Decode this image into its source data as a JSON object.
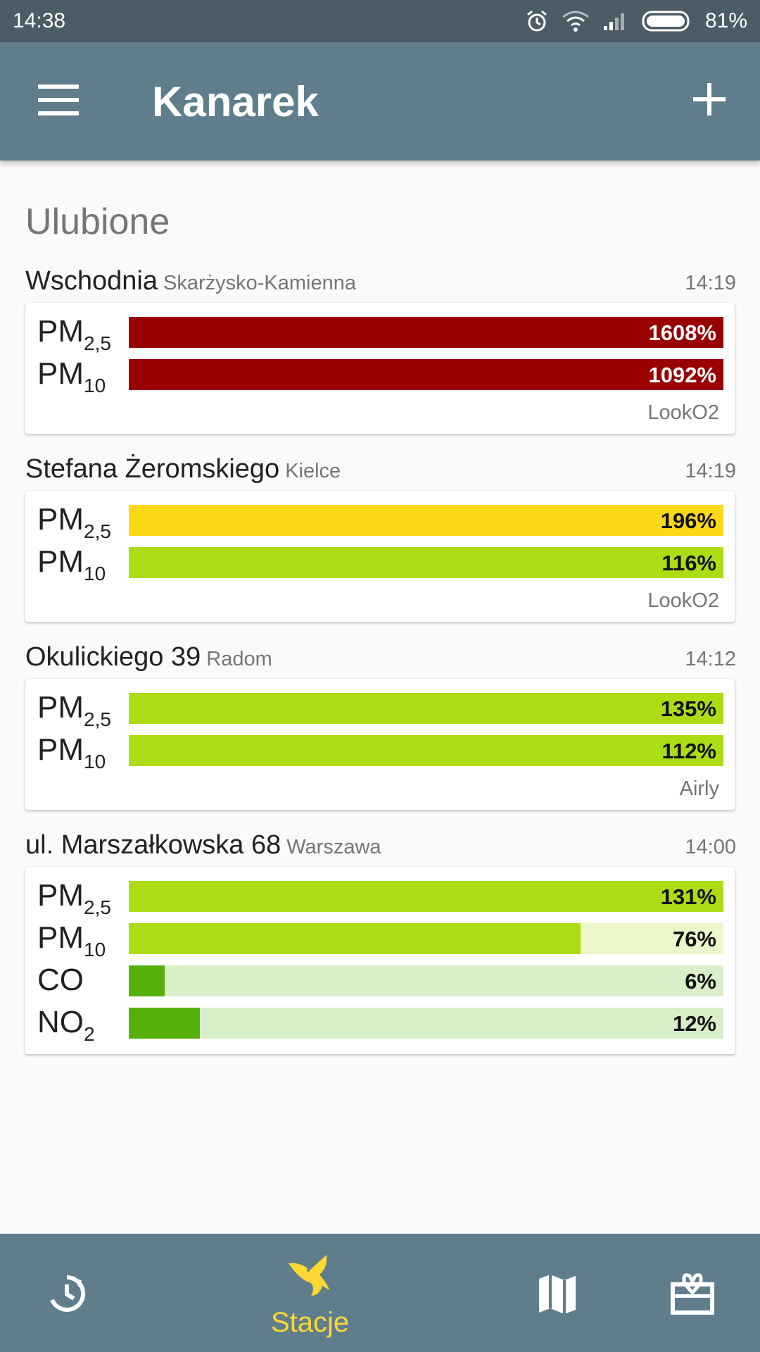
{
  "status_bar": {
    "time": "14:38",
    "battery": "81%"
  },
  "app_bar": {
    "title": "Kanarek",
    "menu_icon": "menu-icon",
    "add_icon": "plus-icon"
  },
  "section_title": "Ulubione",
  "stations": [
    {
      "name": "Wschodnia",
      "city": "Skarżysko-Kamienna",
      "time": "14:19",
      "source": "LookO2",
      "rows": [
        {
          "label": "PM",
          "sub": "2,5",
          "value_text": "1608%",
          "fraction": 1.0,
          "color": "#990000",
          "track": "#990000",
          "text_color": "white"
        },
        {
          "label": "PM",
          "sub": "10",
          "value_text": "1092%",
          "fraction": 1.0,
          "color": "#990000",
          "track": "#990000",
          "text_color": "white"
        }
      ]
    },
    {
      "name": "Stefana Żeromskiego",
      "city": "Kielce",
      "time": "14:19",
      "source": "LookO2",
      "rows": [
        {
          "label": "PM",
          "sub": "2,5",
          "value_text": "196%",
          "fraction": 1.0,
          "color": "#fdd816",
          "track": "#fdd816",
          "text_color": "dark"
        },
        {
          "label": "PM",
          "sub": "10",
          "value_text": "116%",
          "fraction": 1.0,
          "color": "#acdc14",
          "track": "#acdc14",
          "text_color": "dark"
        }
      ]
    },
    {
      "name": "Okulickiego 39",
      "city": "Radom",
      "time": "14:12",
      "source": "Airly",
      "rows": [
        {
          "label": "PM",
          "sub": "2,5",
          "value_text": "135%",
          "fraction": 1.0,
          "color": "#acdc14",
          "track": "#acdc14",
          "text_color": "dark"
        },
        {
          "label": "PM",
          "sub": "10",
          "value_text": "112%",
          "fraction": 1.0,
          "color": "#acdc14",
          "track": "#acdc14",
          "text_color": "dark"
        }
      ]
    },
    {
      "name": "ul. Marszałkowska 68",
      "city": "Warszawa",
      "time": "14:00",
      "source": "",
      "rows": [
        {
          "label": "PM",
          "sub": "2,5",
          "value_text": "131%",
          "fraction": 1.0,
          "color": "#acdc14",
          "track": "#acdc14",
          "text_color": "dark"
        },
        {
          "label": "PM",
          "sub": "10",
          "value_text": "76%",
          "fraction": 0.76,
          "color": "#acdc14",
          "track": "#ecf7cc",
          "text_color": "dark"
        },
        {
          "label": "CO",
          "sub": "",
          "value_text": "6%",
          "fraction": 0.06,
          "color": "#55b00b",
          "track": "#d9efca",
          "text_color": "dark"
        },
        {
          "label": "NO",
          "sub": "2",
          "value_text": "12%",
          "fraction": 0.12,
          "color": "#55b00b",
          "track": "#d9efca",
          "text_color": "dark"
        }
      ]
    }
  ],
  "bottom_nav": {
    "items": [
      {
        "icon": "history-icon"
      },
      {
        "icon": "canary-bird-icon",
        "label": "Stacje",
        "active": true
      },
      {
        "icon": "map-icon"
      },
      {
        "icon": "gift-icon"
      }
    ],
    "active_color": "#fdd835"
  }
}
